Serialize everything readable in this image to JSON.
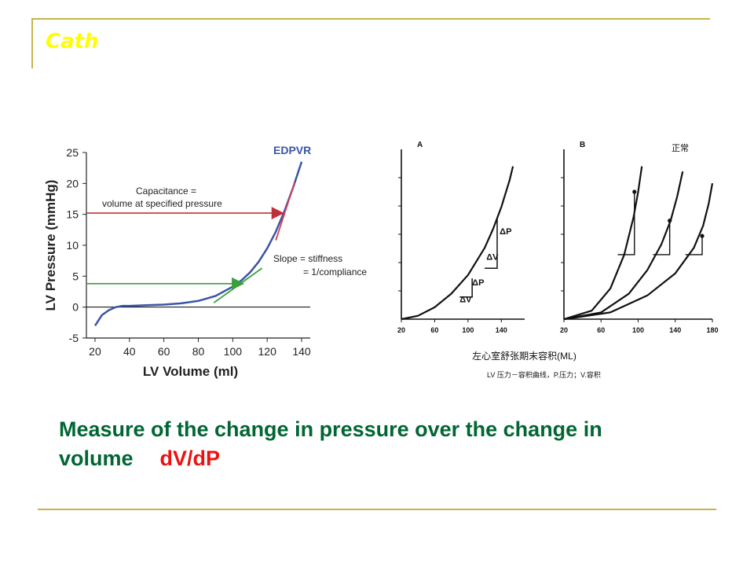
{
  "slide": {
    "title": "Cath",
    "caption_main": "Measure of the change in pressure over the change in volume",
    "caption_highlight": "dV/dP",
    "colors": {
      "title": "#ffff00",
      "rule": "#c8b34a",
      "caption": "#006633",
      "highlight": "#ee1111"
    }
  },
  "chart_data": [
    {
      "type": "line",
      "title": "EDPVR",
      "xlabel": "LV Volume (ml)",
      "ylabel": "LV Pressure (mmHg)",
      "xlim": [
        15,
        145
      ],
      "ylim": [
        -5,
        25
      ],
      "xticks": [
        20,
        40,
        60,
        80,
        100,
        120,
        140
      ],
      "yticks": [
        -5,
        0,
        5,
        10,
        15,
        20,
        25
      ],
      "grid": false,
      "series": [
        {
          "name": "EDPVR",
          "color": "#3a55a5",
          "x": [
            20,
            24,
            28,
            32,
            36,
            40,
            50,
            60,
            70,
            80,
            90,
            100,
            105,
            110,
            115,
            120,
            125,
            130,
            135,
            140
          ],
          "y": [
            -3,
            -1.3,
            -0.5,
            0,
            0.2,
            0.2,
            0.3,
            0.4,
            0.6,
            1.0,
            1.8,
            3.3,
            4.3,
            5.6,
            7.3,
            9.5,
            12.2,
            15.5,
            19.3,
            23.5
          ]
        }
      ],
      "annotations": [
        {
          "text_lines": [
            "Capacitance =",
            "volume at specified pressure"
          ],
          "color": "#c0303a",
          "arrow_from": [
            15,
            15.2
          ],
          "arrow_to": [
            130,
            15.2
          ]
        },
        {
          "text_lines": [
            "Slope = stiffness",
            "= 1/compliance"
          ],
          "color": "#3aa03a",
          "arrow_from": [
            15,
            3.8
          ],
          "arrow_to": [
            106,
            3.8
          ]
        }
      ],
      "tangents": [
        {
          "color": "#d84050",
          "from": [
            125,
            10.8
          ],
          "to": [
            136,
            20.2
          ]
        },
        {
          "color": "#3aa03a",
          "from": [
            89,
            0.7
          ],
          "to": [
            117,
            6.3
          ]
        }
      ],
      "reference_lines": [
        {
          "y": 0,
          "color": "#000000"
        }
      ]
    },
    {
      "type": "line",
      "panel": "A",
      "xlabel": "左心室舒张期末容积(ML)",
      "xticks": [
        20,
        60,
        100,
        140
      ],
      "xlim": [
        20,
        168
      ],
      "ylim": [
        0,
        1
      ],
      "series": [
        {
          "x": [
            20,
            40,
            60,
            80,
            100,
            120,
            130,
            140,
            150,
            154
          ],
          "y": [
            0,
            0.02,
            0.07,
            0.15,
            0.26,
            0.42,
            0.53,
            0.66,
            0.82,
            0.9
          ]
        }
      ],
      "annotations": [
        {
          "text": "ΔP",
          "at": [
            138,
            0.5
          ]
        },
        {
          "text": "ΔV",
          "at": [
            122,
            0.35
          ]
        },
        {
          "text": "ΔP",
          "at": [
            105,
            0.2
          ]
        },
        {
          "text": "ΔV",
          "at": [
            90,
            0.1
          ]
        }
      ]
    },
    {
      "type": "line",
      "panel": "B",
      "legend_label": "正常",
      "note": "LV 压力－容积曲线，P.压力；V.容积",
      "xticks": [
        20,
        60,
        100,
        140,
        180
      ],
      "xlim": [
        20,
        180
      ],
      "ylim": [
        0,
        1
      ],
      "series": [
        {
          "x": [
            20,
            50,
            70,
            85,
            95,
            100,
            104
          ],
          "y": [
            0,
            0.05,
            0.18,
            0.38,
            0.6,
            0.75,
            0.9
          ]
        },
        {
          "x": [
            20,
            60,
            90,
            110,
            125,
            135,
            142,
            148
          ],
          "y": [
            0,
            0.04,
            0.15,
            0.29,
            0.44,
            0.58,
            0.72,
            0.87
          ]
        },
        {
          "x": [
            20,
            70,
            110,
            140,
            160,
            170,
            176,
            180
          ],
          "y": [
            0,
            0.04,
            0.14,
            0.27,
            0.42,
            0.55,
            0.68,
            0.8
          ]
        }
      ],
      "markers": [
        [
          96,
          0.75
        ],
        [
          134,
          0.58
        ],
        [
          169,
          0.49
        ]
      ]
    }
  ]
}
